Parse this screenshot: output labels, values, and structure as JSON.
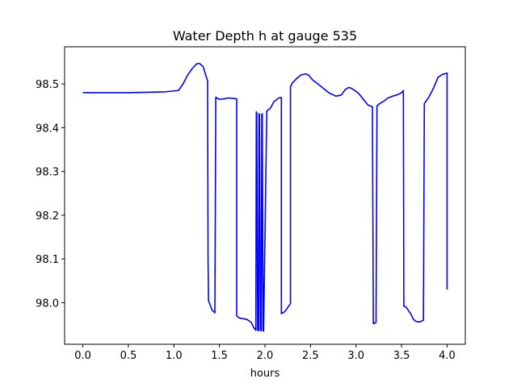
{
  "chart_data": {
    "type": "line",
    "title": "Water Depth h at gauge 535",
    "xlabel": "hours",
    "ylabel": "",
    "xlim": [
      -0.2,
      4.2
    ],
    "ylim": [
      97.905,
      98.585
    ],
    "xticks": [
      0.0,
      0.5,
      1.0,
      1.5,
      2.0,
      2.5,
      3.0,
      3.5,
      4.0
    ],
    "xtick_labels": [
      "0.0",
      "0.5",
      "1.0",
      "1.5",
      "2.0",
      "2.5",
      "3.0",
      "3.5",
      "4.0"
    ],
    "yticks": [
      98.0,
      98.1,
      98.2,
      98.3,
      98.4,
      98.5
    ],
    "ytick_labels": [
      "98.0",
      "98.1",
      "98.2",
      "98.3",
      "98.4",
      "98.5"
    ],
    "grid": false,
    "legend": false,
    "series": [
      {
        "color": "#0000ff",
        "x": [
          0.0,
          0.5,
          0.9,
          1.05,
          1.1,
          1.15,
          1.2,
          1.25,
          1.28,
          1.32,
          1.35,
          1.37,
          1.375,
          1.38,
          1.42,
          1.45,
          1.46,
          1.47,
          1.5,
          1.55,
          1.6,
          1.65,
          1.69,
          1.69,
          1.72,
          1.8,
          1.85,
          1.88,
          1.9,
          1.905,
          1.91,
          1.92,
          1.93,
          1.935,
          1.94,
          1.95,
          1.96,
          1.965,
          1.97,
          1.98,
          1.985,
          2.02,
          2.06,
          2.1,
          2.15,
          2.18,
          2.18,
          2.22,
          2.28,
          2.28,
          2.3,
          2.35,
          2.4,
          2.45,
          2.48,
          2.52,
          2.6,
          2.7,
          2.78,
          2.84,
          2.88,
          2.92,
          2.95,
          3.0,
          3.03,
          3.08,
          3.13,
          3.18,
          3.19,
          3.22,
          3.23,
          3.23,
          3.26,
          3.3,
          3.35,
          3.4,
          3.45,
          3.5,
          3.52,
          3.525,
          3.55,
          3.6,
          3.63,
          3.66,
          3.7,
          3.74,
          3.75,
          3.75,
          3.8,
          3.85,
          3.9,
          3.95,
          3.99,
          4.0,
          4.0
        ],
        "values": [
          98.48,
          98.48,
          98.482,
          98.485,
          98.5,
          98.52,
          98.535,
          98.546,
          98.547,
          98.54,
          98.52,
          98.507,
          98.1,
          98.005,
          97.983,
          97.977,
          98.47,
          98.468,
          98.465,
          98.466,
          98.468,
          98.467,
          98.466,
          97.97,
          97.965,
          97.962,
          97.955,
          97.942,
          97.937,
          98.436,
          98.435,
          97.937,
          97.936,
          98.432,
          98.43,
          97.937,
          97.936,
          98.43,
          98.432,
          97.936,
          97.935,
          98.438,
          98.445,
          98.46,
          98.468,
          98.469,
          97.975,
          97.98,
          97.998,
          98.493,
          98.502,
          98.513,
          98.521,
          98.523,
          98.52,
          98.51,
          98.497,
          98.48,
          98.472,
          98.475,
          98.487,
          98.492,
          98.49,
          98.483,
          98.478,
          98.465,
          98.452,
          98.448,
          97.952,
          97.955,
          98.448,
          98.45,
          98.455,
          98.46,
          98.468,
          98.472,
          98.475,
          98.48,
          98.485,
          97.992,
          97.99,
          97.975,
          97.962,
          97.957,
          97.956,
          97.96,
          98.452,
          98.455,
          98.47,
          98.49,
          98.515,
          98.522,
          98.524,
          98.525,
          98.03
        ]
      }
    ]
  }
}
